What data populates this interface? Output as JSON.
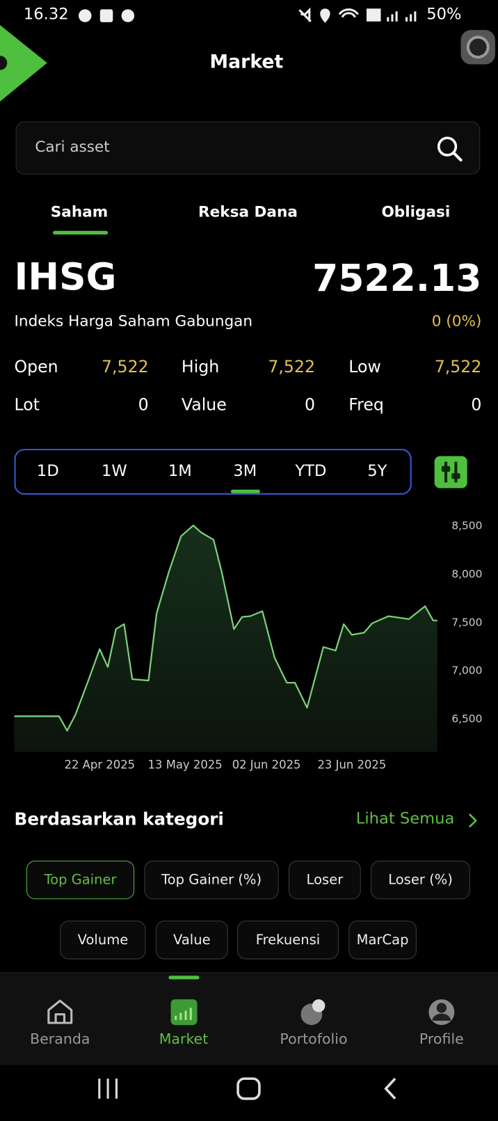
{
  "status_bar": {
    "time": "16.32",
    "battery": "50%"
  },
  "header": {
    "title": "Market"
  },
  "search": {
    "placeholder": "Cari asset"
  },
  "tabs": [
    "Saham",
    "Reksa Dana",
    "Obligasi"
  ],
  "index": {
    "code": "IHSG",
    "price": "7522.13",
    "name": "Indeks Harga Saham Gabungan",
    "change": "0 (0%)"
  },
  "stats": [
    {
      "label": "Open",
      "value": "7,522"
    },
    {
      "label": "High",
      "value": "7,522"
    },
    {
      "label": "Low",
      "value": "7,522"
    },
    {
      "label": "Lot",
      "value": "0"
    },
    {
      "label": "Value",
      "value": "0"
    },
    {
      "label": "Freq",
      "value": "0"
    }
  ],
  "periods": [
    "1D",
    "1W",
    "1M",
    "3M",
    "YTD",
    "5Y"
  ],
  "chart_data": {
    "type": "line",
    "color": "#7ccf7a",
    "x": [
      "2025-04-01",
      "2025-04-12",
      "2025-04-14",
      "2025-04-16",
      "2025-04-19",
      "2025-04-22",
      "2025-04-24",
      "2025-04-26",
      "2025-04-28",
      "2025-04-30",
      "2025-05-04",
      "2025-05-06",
      "2025-05-09",
      "2025-05-12",
      "2025-05-15",
      "2025-05-17",
      "2025-05-20",
      "2025-05-22",
      "2025-05-25",
      "2025-05-27",
      "2025-05-29",
      "2025-06-01",
      "2025-06-04",
      "2025-06-07",
      "2025-06-09",
      "2025-06-12",
      "2025-06-16",
      "2025-06-19",
      "2025-06-21",
      "2025-06-23",
      "2025-06-26",
      "2025-06-28",
      "2025-07-02",
      "2025-07-07",
      "2025-07-11",
      "2025-07-13",
      "2025-07-14"
    ],
    "values": [
      6530,
      6530,
      6381,
      6544,
      6878,
      7226,
      7041,
      7433,
      7485,
      6915,
      6900,
      7596,
      8026,
      8396,
      8507,
      8433,
      8359,
      8026,
      7433,
      7559,
      7567,
      7619,
      7137,
      6878,
      6878,
      6619,
      7248,
      7211,
      7485,
      7374,
      7396,
      7493,
      7567,
      7537,
      7670,
      7522,
      7522
    ],
    "xlim": [
      "2025-04-01",
      "2025-07-14"
    ],
    "xticks": [
      {
        "value": "2025-04-22",
        "label": "22 Apr 2025"
      },
      {
        "value": "2025-05-13",
        "label": "13 May 2025"
      },
      {
        "value": "2025-06-02",
        "label": "02 Jun 2025"
      },
      {
        "value": "2025-06-23",
        "label": "23 Jun 2025"
      }
    ],
    "ylim": [
      6160,
      8545
    ],
    "yticks": [
      {
        "value": 6500,
        "label": "6,500"
      },
      {
        "value": 7000,
        "label": "7,000"
      },
      {
        "value": 7500,
        "label": "7,500"
      },
      {
        "value": 8000,
        "label": "8,000"
      },
      {
        "value": 8500,
        "label": "8,500"
      }
    ]
  },
  "category_section": {
    "title": "Berdasarkan kategori",
    "link": "Lihat Semua"
  },
  "chips": [
    [
      "Top Gainer",
      "Top Gainer (%)",
      "Loser",
      "Loser (%)"
    ],
    [
      "Volume",
      "Value",
      "Frekuensi",
      "MarCap"
    ]
  ],
  "bottom_nav": [
    "Beranda",
    "Market",
    "Portofolio",
    "Profile"
  ]
}
